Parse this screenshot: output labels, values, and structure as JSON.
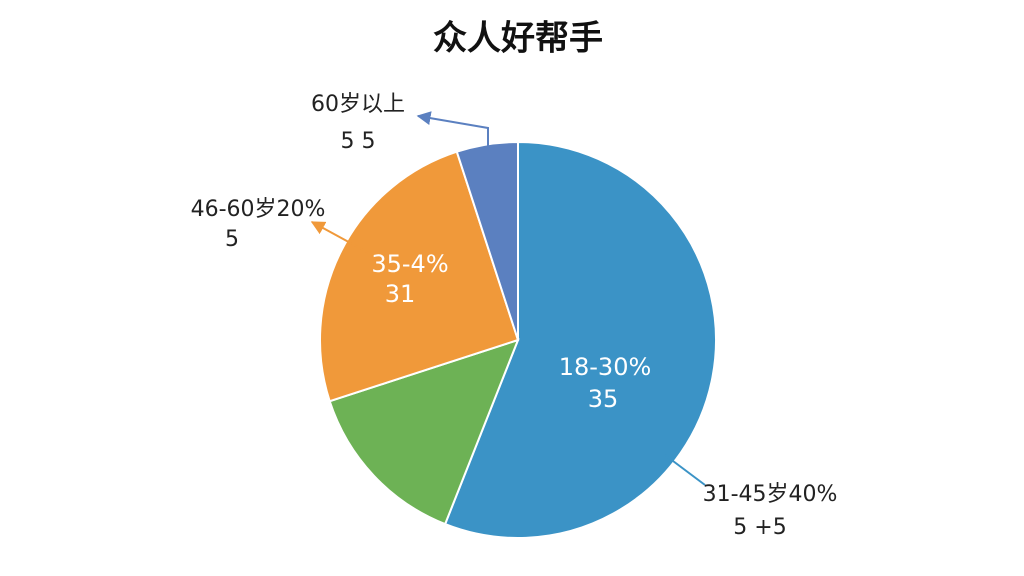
{
  "chart_data": {
    "type": "pie",
    "title": "众人好帮手",
    "values": [
      56,
      14,
      25,
      5
    ],
    "colors": [
      "#3b93c6",
      "#6db255",
      "#f0993a",
      "#5b80c0"
    ],
    "annotations": [
      {
        "lines": [
          "18-30%",
          "35"
        ]
      },
      {
        "lines": [
          "35-4%",
          "31"
        ]
      },
      {
        "lines": [
          "60岁以上",
          "5 5"
        ]
      },
      {
        "lines": [
          "46-60岁20%",
          "5"
        ]
      },
      {
        "lines": [
          "31-45岁40%",
          "5 +5"
        ]
      }
    ]
  }
}
